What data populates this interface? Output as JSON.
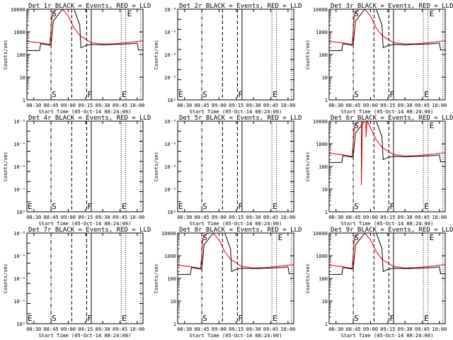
{
  "figure": {
    "x_axis_label": "Start Time (05-Oct-14 08:24:00)",
    "y_axis_label": "Counts/sec",
    "x_tick_labels": [
      "08:30",
      "08:45",
      "09:00",
      "09:15",
      "09:30",
      "09:45",
      "10:00"
    ],
    "log_tick_labels": [
      "1",
      "10",
      "100",
      "1000",
      "10000"
    ],
    "exp_tick_labels": [
      "10⁰",
      "10⁻²",
      "10⁻⁴",
      "10⁻⁶",
      "10⁻⁸"
    ],
    "colors": {
      "events": "#000000",
      "lld": "#cc0000",
      "background": "#ffffff"
    }
  },
  "chart_data": [
    {
      "type": "line",
      "title": "Det 1r BLACK = Events, RED = LLD",
      "scale": "log",
      "ylim": [
        1,
        10000
      ],
      "xlim": [
        "08:24",
        "10:05"
      ],
      "markers": [
        {
          "label": "S",
          "x": "08:45"
        },
        {
          "label": "F",
          "x": "09:16"
        },
        {
          "label": "E",
          "x": "09:46"
        }
      ],
      "series": [
        {
          "name": "Events",
          "x": [
            "08:24",
            "08:35",
            "08:36",
            "08:44",
            "08:45",
            "08:47",
            "08:55",
            "09:05",
            "09:10",
            "09:11",
            "09:15",
            "09:20",
            "09:30",
            "09:40",
            "09:55",
            "10:00",
            "10:01",
            "10:05"
          ],
          "values": [
            150,
            150,
            300,
            260,
            280,
            3000,
            10000,
            10000,
            2000,
            200,
            250,
            280,
            270,
            280,
            300,
            320,
            160,
            160
          ]
        },
        {
          "name": "LLD",
          "x": [
            "08:24",
            "08:35",
            "08:40",
            "08:44",
            "08:46",
            "08:50",
            "08:55",
            "09:00",
            "09:05",
            "09:10",
            "09:15",
            "09:20",
            "09:30",
            "09:40",
            "09:50",
            "10:00",
            "10:05"
          ],
          "values": [
            380,
            330,
            300,
            280,
            6000,
            10000,
            10000,
            5000,
            1500,
            700,
            480,
            330,
            290,
            300,
            330,
            380,
            400
          ]
        }
      ]
    },
    {
      "type": "line",
      "title": "Det 2r BLACK = Events, RED = LLD",
      "scale": "exp",
      "ylim": [
        1e-09,
        1
      ],
      "xlim": [
        "08:24",
        "10:05"
      ],
      "markers": [
        {
          "label": "E",
          "x": "08:24"
        },
        {
          "label": "S",
          "x": "08:45"
        },
        {
          "label": "F",
          "x": "09:16"
        },
        {
          "label": "E",
          "x": "09:46"
        }
      ],
      "series": []
    },
    {
      "type": "line",
      "title": "Det 3r BLACK = Events, RED = LLD",
      "scale": "log",
      "ylim": [
        1,
        10000
      ],
      "xlim": [
        "08:24",
        "10:05"
      ],
      "markers": [
        {
          "label": "S",
          "x": "08:45"
        },
        {
          "label": "F",
          "x": "09:16"
        },
        {
          "label": "E",
          "x": "09:46"
        }
      ],
      "series": [
        {
          "name": "Events",
          "x": [
            "08:24",
            "08:35",
            "08:36",
            "08:44",
            "08:45",
            "08:47",
            "08:55",
            "09:05",
            "09:10",
            "09:11",
            "09:15",
            "09:20",
            "09:30",
            "09:40",
            "09:55",
            "10:00",
            "10:01",
            "10:05"
          ],
          "values": [
            150,
            150,
            300,
            260,
            280,
            3000,
            10000,
            10000,
            2000,
            200,
            250,
            280,
            270,
            280,
            300,
            320,
            160,
            160
          ]
        },
        {
          "name": "LLD",
          "x": [
            "08:24",
            "08:35",
            "08:40",
            "08:44",
            "08:46",
            "08:50",
            "08:55",
            "09:00",
            "09:05",
            "09:10",
            "09:15",
            "09:20",
            "09:30",
            "09:40",
            "09:50",
            "10:00",
            "10:05"
          ],
          "values": [
            380,
            330,
            300,
            280,
            6000,
            10000,
            10000,
            5000,
            1500,
            700,
            480,
            330,
            290,
            300,
            330,
            380,
            400
          ]
        }
      ]
    },
    {
      "type": "line",
      "title": "Det 4r BLACK = Events, RED = LLD",
      "scale": "exp",
      "ylim": [
        1e-09,
        1
      ],
      "xlim": [
        "08:24",
        "10:05"
      ],
      "markers": [
        {
          "label": "E",
          "x": "08:24"
        },
        {
          "label": "S",
          "x": "08:45"
        },
        {
          "label": "F",
          "x": "09:16"
        },
        {
          "label": "E",
          "x": "09:46"
        }
      ],
      "series": []
    },
    {
      "type": "line",
      "title": "Det 5r BLACK = Events, RED = LLD",
      "scale": "exp",
      "ylim": [
        1e-09,
        1
      ],
      "xlim": [
        "08:24",
        "10:05"
      ],
      "markers": [
        {
          "label": "E",
          "x": "08:24"
        },
        {
          "label": "S",
          "x": "08:45"
        },
        {
          "label": "F",
          "x": "09:16"
        },
        {
          "label": "E",
          "x": "09:46"
        }
      ],
      "series": []
    },
    {
      "type": "line",
      "title": "Det 6r BLACK = Events, RED = LLD",
      "scale": "log",
      "ylim": [
        1,
        10000
      ],
      "xlim": [
        "08:24",
        "10:05"
      ],
      "markers": [
        {
          "label": "S",
          "x": "08:45"
        },
        {
          "label": "F",
          "x": "09:16"
        },
        {
          "label": "E",
          "x": "09:46"
        }
      ],
      "series": [
        {
          "name": "Events",
          "x": [
            "08:24",
            "08:35",
            "08:36",
            "08:44",
            "08:45",
            "08:47",
            "08:55",
            "09:05",
            "09:10",
            "09:11",
            "09:15",
            "09:20",
            "09:30",
            "09:40",
            "09:55",
            "10:00",
            "10:01",
            "10:05"
          ],
          "values": [
            150,
            150,
            300,
            260,
            280,
            3000,
            10000,
            10000,
            2000,
            200,
            250,
            280,
            270,
            280,
            300,
            320,
            160,
            160
          ]
        },
        {
          "name": "LLD",
          "x": [
            "08:24",
            "08:35",
            "08:40",
            "08:44",
            "08:46",
            "08:50",
            "08:52",
            "08:52",
            "08:53",
            "08:55",
            "08:56",
            "08:56",
            "08:57",
            "09:00",
            "09:05",
            "09:10",
            "09:15",
            "09:20",
            "09:30",
            "09:40",
            "09:50",
            "10:00",
            "10:05"
          ],
          "values": [
            380,
            330,
            300,
            280,
            6000,
            10000,
            10000,
            15,
            10000,
            10000,
            10000,
            2000,
            10000,
            5000,
            1500,
            700,
            480,
            330,
            290,
            300,
            330,
            380,
            400
          ]
        }
      ]
    },
    {
      "type": "line",
      "title": "Det 7r BLACK = Events, RED = LLD",
      "scale": "exp",
      "ylim": [
        1e-09,
        1
      ],
      "xlim": [
        "08:24",
        "10:05"
      ],
      "markers": [
        {
          "label": "E",
          "x": "08:24"
        },
        {
          "label": "S",
          "x": "08:45"
        },
        {
          "label": "F",
          "x": "09:16"
        },
        {
          "label": "E",
          "x": "09:46"
        }
      ],
      "series": []
    },
    {
      "type": "line",
      "title": "Det 8r BLACK = Events, RED = LLD",
      "scale": "log",
      "ylim": [
        1,
        10000
      ],
      "xlim": [
        "08:24",
        "10:05"
      ],
      "markers": [
        {
          "label": "S",
          "x": "08:45"
        },
        {
          "label": "F",
          "x": "09:16"
        },
        {
          "label": "E",
          "x": "09:46"
        }
      ],
      "series": [
        {
          "name": "Events",
          "x": [
            "08:24",
            "08:35",
            "08:36",
            "08:44",
            "08:45",
            "08:47",
            "08:55",
            "09:05",
            "09:10",
            "09:11",
            "09:15",
            "09:20",
            "09:30",
            "09:40",
            "09:55",
            "10:00",
            "10:01",
            "10:05"
          ],
          "values": [
            150,
            150,
            300,
            260,
            280,
            3000,
            10000,
            10000,
            2000,
            200,
            250,
            280,
            270,
            280,
            300,
            320,
            160,
            160
          ]
        },
        {
          "name": "LLD",
          "x": [
            "08:24",
            "08:35",
            "08:40",
            "08:44",
            "08:46",
            "08:50",
            "08:55",
            "09:00",
            "09:05",
            "09:10",
            "09:15",
            "09:20",
            "09:30",
            "09:40",
            "09:50",
            "10:00",
            "10:05"
          ],
          "values": [
            380,
            330,
            300,
            280,
            6000,
            10000,
            10000,
            5000,
            1500,
            700,
            480,
            330,
            290,
            300,
            330,
            380,
            400
          ]
        }
      ]
    },
    {
      "type": "line",
      "title": "Det 9r BLACK = Events, RED = LLD",
      "scale": "log",
      "ylim": [
        1,
        10000
      ],
      "xlim": [
        "08:24",
        "10:05"
      ],
      "markers": [
        {
          "label": "S",
          "x": "08:45"
        },
        {
          "label": "F",
          "x": "09:16"
        },
        {
          "label": "E",
          "x": "09:46"
        }
      ],
      "series": [
        {
          "name": "Events",
          "x": [
            "08:24",
            "08:35",
            "08:36",
            "08:44",
            "08:45",
            "08:47",
            "08:55",
            "09:05",
            "09:10",
            "09:11",
            "09:15",
            "09:20",
            "09:30",
            "09:40",
            "09:55",
            "10:00",
            "10:01",
            "10:05"
          ],
          "values": [
            150,
            150,
            300,
            260,
            280,
            3000,
            10000,
            10000,
            2000,
            200,
            250,
            280,
            270,
            280,
            300,
            320,
            160,
            160
          ]
        },
        {
          "name": "LLD",
          "x": [
            "08:24",
            "08:35",
            "08:40",
            "08:44",
            "08:46",
            "08:50",
            "08:55",
            "09:00",
            "09:05",
            "09:10",
            "09:15",
            "09:20",
            "09:30",
            "09:40",
            "09:50",
            "10:00",
            "10:05"
          ],
          "values": [
            380,
            330,
            300,
            280,
            6000,
            10000,
            10000,
            5000,
            1500,
            700,
            480,
            330,
            290,
            300,
            330,
            380,
            400
          ]
        }
      ]
    }
  ]
}
